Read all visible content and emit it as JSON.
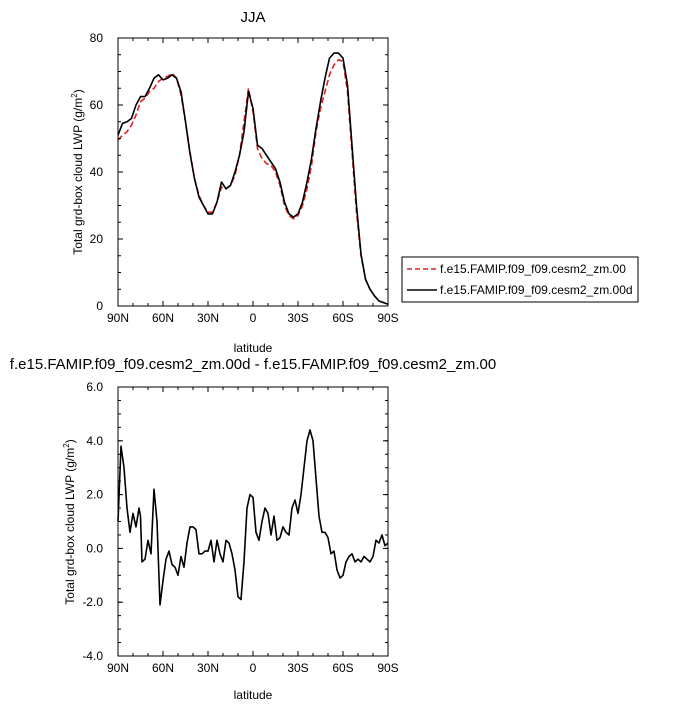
{
  "chart_data": [
    {
      "type": "line",
      "title": "JJA",
      "xlabel": "latitude",
      "ylabel_main": "Total grd-box cloud LWP (g/m",
      "ylabel_sup": "2",
      "ylabel_close": ")",
      "xlim": [
        90,
        -90
      ],
      "ylim": [
        0,
        80
      ],
      "x_ticks": [
        {
          "value": 90,
          "label": "90N"
        },
        {
          "value": 60,
          "label": "60N"
        },
        {
          "value": 30,
          "label": "30N"
        },
        {
          "value": 0,
          "label": "0"
        },
        {
          "value": -30,
          "label": "30S"
        },
        {
          "value": -60,
          "label": "60S"
        },
        {
          "value": -90,
          "label": "90S"
        }
      ],
      "y_ticks": [
        {
          "value": 0,
          "label": "0"
        },
        {
          "value": 20,
          "label": "20"
        },
        {
          "value": 40,
          "label": "40"
        },
        {
          "value": 60,
          "label": "60"
        },
        {
          "value": 80,
          "label": "80"
        }
      ],
      "legend_position": "right",
      "series": [
        {
          "name": "f.e15.FAMIP.f09_f09.cesm2_zm.00",
          "color": "#e02020",
          "dash": "dashed",
          "x": [
            90,
            87,
            84,
            81,
            78,
            75,
            72,
            69,
            66,
            63,
            60,
            57,
            54,
            51,
            48,
            45,
            42,
            39,
            36,
            33,
            30,
            27,
            24,
            21,
            18,
            15,
            12,
            9,
            6,
            3,
            0,
            -3,
            -6,
            -9,
            -12,
            -15,
            -18,
            -21,
            -24,
            -27,
            -30,
            -33,
            -36,
            -39,
            -42,
            -45,
            -48,
            -51,
            -54,
            -57,
            -60,
            -63,
            -66,
            -69,
            -72,
            -75,
            -78,
            -81,
            -84,
            -87,
            -90
          ],
          "values": [
            49.5,
            51,
            52,
            54,
            57,
            61,
            62,
            64,
            65,
            67,
            68,
            68.5,
            69.5,
            68,
            63,
            55,
            46,
            38,
            33,
            30,
            28,
            28,
            31,
            35.5,
            35,
            36,
            39,
            45,
            55,
            65,
            58,
            47,
            44,
            42.5,
            42,
            40,
            36,
            30,
            27,
            26,
            27,
            30,
            35,
            42,
            52,
            59,
            64,
            69,
            72,
            73.5,
            73,
            64,
            46,
            28,
            15,
            8,
            5,
            3,
            1.5,
            1,
            0.5
          ]
        },
        {
          "name": "f.e15.FAMIP.f09_f09.cesm2_zm.00d",
          "color": "#000000",
          "dash": "solid",
          "x": [
            90,
            87,
            84,
            81,
            78,
            75,
            72,
            69,
            66,
            63,
            60,
            57,
            54,
            51,
            48,
            45,
            42,
            39,
            36,
            33,
            30,
            27,
            24,
            21,
            18,
            15,
            12,
            9,
            6,
            3,
            0,
            -3,
            -6,
            -9,
            -12,
            -15,
            -18,
            -21,
            -24,
            -27,
            -30,
            -33,
            -36,
            -39,
            -42,
            -45,
            -48,
            -51,
            -54,
            -57,
            -60,
            -63,
            -66,
            -69,
            -72,
            -75,
            -78,
            -81,
            -84,
            -87,
            -90
          ],
          "values": [
            51,
            54.5,
            55,
            56,
            60,
            62.5,
            62.5,
            65,
            68,
            69,
            67.5,
            68,
            69,
            68,
            64,
            55,
            45.5,
            38,
            32.5,
            30,
            27.5,
            27.5,
            31,
            37,
            35,
            36,
            40,
            45,
            52,
            64,
            59,
            48,
            47,
            45,
            43,
            41,
            37,
            31,
            27.5,
            26.5,
            27.5,
            31,
            37,
            44,
            53,
            61,
            68,
            74,
            75.5,
            75.5,
            74,
            66,
            48,
            30,
            15.5,
            8,
            5,
            3,
            1.5,
            1,
            0.5
          ]
        }
      ]
    },
    {
      "type": "line",
      "title": "f.e15.FAMIP.f09_f09.cesm2_zm.00d - f.e15.FAMIP.f09_f09.cesm2_zm.00",
      "xlabel": "latitude",
      "ylabel_main": "Total grd-box cloud LWP (g/m",
      "ylabel_sup": "2",
      "ylabel_close": ")",
      "xlim": [
        90,
        -90
      ],
      "ylim": [
        -4,
        6
      ],
      "x_ticks": [
        {
          "value": 90,
          "label": "90N"
        },
        {
          "value": 60,
          "label": "60N"
        },
        {
          "value": 30,
          "label": "30N"
        },
        {
          "value": 0,
          "label": "0"
        },
        {
          "value": -30,
          "label": "30S"
        },
        {
          "value": -60,
          "label": "60S"
        },
        {
          "value": -90,
          "label": "90S"
        }
      ],
      "y_ticks": [
        {
          "value": -4,
          "label": "-4.0"
        },
        {
          "value": -2,
          "label": "-2.0"
        },
        {
          "value": 0,
          "label": "0.0"
        },
        {
          "value": 2,
          "label": "2.0"
        },
        {
          "value": 4,
          "label": "4.0"
        },
        {
          "value": 6,
          "label": "6.0"
        }
      ],
      "series": [
        {
          "color": "#000000",
          "dash": "solid",
          "x": [
            90,
            88,
            86,
            84,
            82,
            80,
            78,
            76,
            75,
            74,
            72,
            70,
            68,
            66,
            64,
            62,
            60,
            58,
            56,
            54,
            52,
            50,
            48,
            46,
            44,
            42,
            40,
            38,
            36,
            34,
            32,
            30,
            28,
            26,
            24,
            22,
            20,
            18,
            16,
            14,
            12,
            10,
            8,
            6,
            4,
            2,
            0,
            -2,
            -4,
            -6,
            -8,
            -10,
            -12,
            -14,
            -16,
            -18,
            -20,
            -22,
            -24,
            -26,
            -28,
            -30,
            -32,
            -34,
            -36,
            -38,
            -40,
            -42,
            -44,
            -46,
            -48,
            -50,
            -52,
            -54,
            -56,
            -58,
            -60,
            -62,
            -64,
            -66,
            -68,
            -70,
            -72,
            -74,
            -76,
            -78,
            -80,
            -82,
            -84,
            -86,
            -88,
            -90
          ],
          "values": [
            1.0,
            3.8,
            3.0,
            1.5,
            0.6,
            1.3,
            0.8,
            1.5,
            1.2,
            -0.5,
            -0.4,
            0.3,
            -0.2,
            2.2,
            1.0,
            -2.1,
            -1.2,
            -0.4,
            -0.1,
            -0.6,
            -0.7,
            -1.0,
            -0.3,
            -0.7,
            0.2,
            0.8,
            0.8,
            0.7,
            -0.2,
            -0.2,
            -0.1,
            -0.1,
            0.3,
            -0.5,
            0.3,
            -0.2,
            -0.5,
            0.3,
            0.2,
            -0.2,
            -0.8,
            -1.8,
            -1.9,
            -0.5,
            1.5,
            2.0,
            1.9,
            0.6,
            0.3,
            1.0,
            1.5,
            1.3,
            0.5,
            1.2,
            0.3,
            0.4,
            0.8,
            0.6,
            0.5,
            1.5,
            1.8,
            1.3,
            2.0,
            3.0,
            4.0,
            4.4,
            4.0,
            2.6,
            1.2,
            0.6,
            0.6,
            0.4,
            -0.2,
            -0.1,
            -0.8,
            -1.1,
            -1.0,
            -0.5,
            -0.3,
            -0.2,
            -0.5,
            -0.4,
            -0.5,
            -0.3,
            -0.4,
            -0.5,
            -0.3,
            0.3,
            0.2,
            0.5,
            0.1,
            0.2
          ]
        }
      ]
    }
  ]
}
